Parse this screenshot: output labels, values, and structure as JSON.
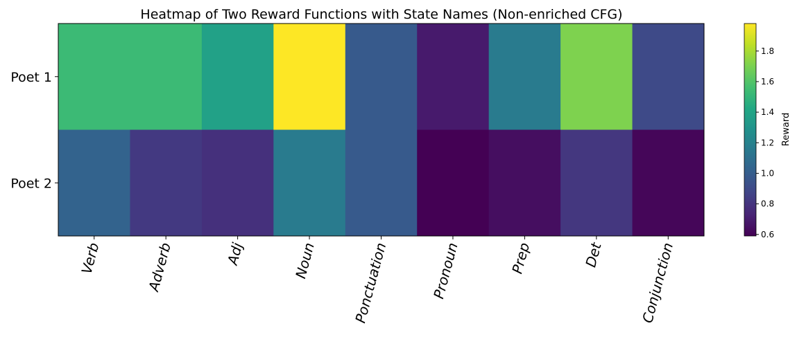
{
  "chart_data": {
    "type": "heatmap",
    "title": "Heatmap of Two Reward Functions with State Names (Non-enriched CFG)",
    "rows": [
      "Poet 1",
      "Poet 2"
    ],
    "columns": [
      "Verb",
      "Adverb",
      "Adj",
      "Noun",
      "Ponctuation",
      "Pronoun",
      "Prep",
      "Det",
      "Conjunction"
    ],
    "values": [
      [
        1.53,
        1.53,
        1.38,
        1.98,
        0.98,
        0.69,
        1.16,
        1.71,
        0.9
      ],
      [
        1.03,
        0.82,
        0.78,
        1.16,
        0.98,
        0.59,
        0.64,
        0.81,
        0.61
      ]
    ],
    "colormap": "viridis",
    "vmin": 0.59,
    "vmax": 1.98,
    "colorbar": {
      "label": "Reward",
      "ticks": [
        0.6,
        0.8,
        1.0,
        1.2,
        1.4,
        1.6,
        1.8
      ],
      "tick_labels": [
        "0.6",
        "0.8",
        "1.0",
        "1.2",
        "1.4",
        "1.6",
        "1.8"
      ]
    }
  }
}
